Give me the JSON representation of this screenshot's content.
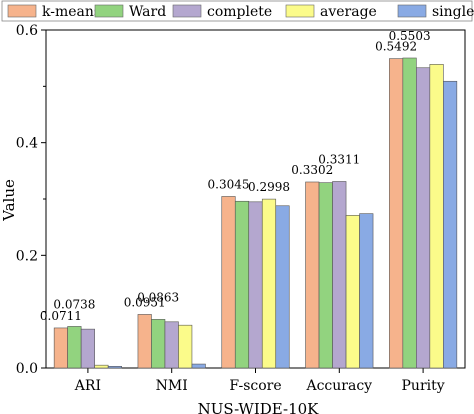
{
  "chart_data": {
    "type": "bar",
    "xlabel": "NUS-WIDE-10K",
    "ylabel": "Value",
    "ylim": [
      0,
      0.6
    ],
    "yticks": [
      "0.0",
      "0.2",
      "0.4",
      "0.6"
    ],
    "grid": false,
    "legend_position": "top",
    "categories": [
      "ARI",
      "NMI",
      "F-score",
      "Accuracy",
      "Purity"
    ],
    "series": [
      {
        "name": "k-means",
        "color": "#f6b38c",
        "values": [
          0.0711,
          0.0951,
          0.3045,
          0.3302,
          0.5492
        ]
      },
      {
        "name": "Ward",
        "color": "#92d37f",
        "values": [
          0.0738,
          0.0863,
          0.296,
          0.329,
          0.5503
        ]
      },
      {
        "name": "complete",
        "color": "#b4a7cf",
        "values": [
          0.069,
          0.082,
          0.295,
          0.3311,
          0.533
        ]
      },
      {
        "name": "average",
        "color": "#fbfb8a",
        "values": [
          0.005,
          0.076,
          0.2998,
          0.271,
          0.539
        ]
      },
      {
        "name": "single",
        "color": "#89aae4",
        "values": [
          0.003,
          0.007,
          0.288,
          0.274,
          0.509
        ]
      }
    ],
    "data_labels": [
      {
        "text": "0.0711",
        "category": 0,
        "series": 0
      },
      {
        "text": "0.0738",
        "category": 0,
        "series": 1
      },
      {
        "text": "0.0951",
        "category": 1,
        "series": 0
      },
      {
        "text": "0.0863",
        "category": 1,
        "series": 1
      },
      {
        "text": "0.3045",
        "category": 2,
        "series": 0
      },
      {
        "text": "0.2998",
        "category": 2,
        "series": 3
      },
      {
        "text": "0.3302",
        "category": 3,
        "series": 0
      },
      {
        "text": "0.3311",
        "category": 3,
        "series": 2
      },
      {
        "text": "0.5492",
        "category": 4,
        "series": 0
      },
      {
        "text": "0.5503",
        "category": 4,
        "series": 1
      }
    ]
  }
}
